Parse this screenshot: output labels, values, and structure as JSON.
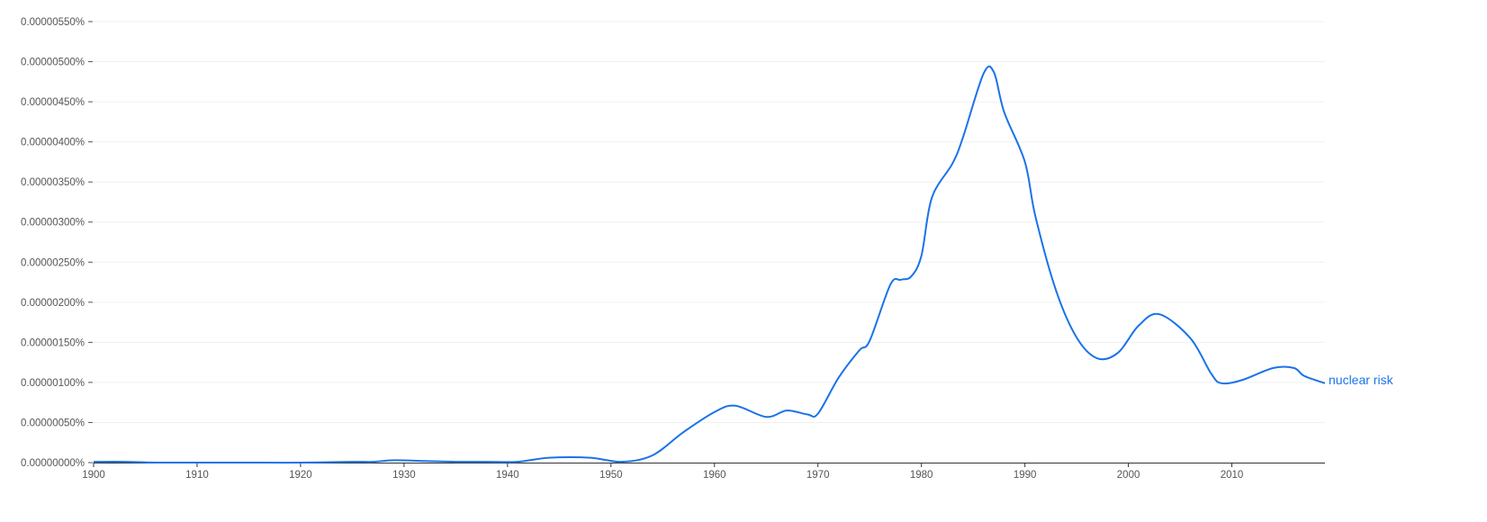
{
  "chart_data": {
    "type": "line",
    "xlim": [
      1900,
      2019
    ],
    "ylim": [
      0,
      5.5e-06
    ],
    "grid": true,
    "x_ticks": [
      1900,
      1910,
      1920,
      1930,
      1940,
      1950,
      1960,
      1970,
      1980,
      1990,
      2000,
      2010
    ],
    "x_tick_labels": [
      "1900",
      "1910",
      "1920",
      "1930",
      "1940",
      "1950",
      "1960",
      "1970",
      "1980",
      "1990",
      "2000",
      "2010"
    ],
    "y_ticks": [
      0,
      5e-07,
      1e-06,
      1.5e-06,
      2e-06,
      2.5e-06,
      3e-06,
      3.5e-06,
      4e-06,
      4.5e-06,
      5e-06,
      5.5e-06
    ],
    "y_tick_labels": [
      "0.00000000%",
      "0.00000050%",
      "0.00000100%",
      "0.00000150%",
      "0.00000200%",
      "0.00000250%",
      "0.00000300%",
      "0.00000350%",
      "0.00000400%",
      "0.00000450%",
      "0.00000500%",
      "0.00000550%"
    ],
    "series": [
      {
        "name": "nuclear risk",
        "color": "#1a73e8",
        "x": [
          1900,
          1903,
          1906,
          1910,
          1915,
          1920,
          1925,
          1927,
          1929,
          1932,
          1935,
          1938,
          1941,
          1944,
          1948,
          1951,
          1954,
          1957,
          1960,
          1962,
          1965,
          1967,
          1969,
          1970,
          1972,
          1974,
          1975,
          1977,
          1978,
          1979,
          1980,
          1981,
          1983,
          1984,
          1986,
          1987,
          1988,
          1990,
          1991,
          1993,
          1995,
          1997,
          1999,
          2001,
          2003,
          2006,
          2008,
          2009,
          2011,
          2014,
          2016,
          2017,
          2019
        ],
        "values": [
          1e-08,
          1e-08,
          0,
          0,
          0,
          0,
          1e-08,
          1e-08,
          3e-08,
          2e-08,
          1e-08,
          1e-08,
          1e-08,
          6e-08,
          6e-08,
          1e-08,
          9e-08,
          3.8e-07,
          6.3e-07,
          7.1e-07,
          5.7e-07,
          6.5e-07,
          6e-07,
          6.1e-07,
          1.06e-06,
          1.4e-06,
          1.52e-06,
          2.22e-06,
          2.28e-06,
          2.32e-06,
          2.58e-06,
          3.3e-06,
          3.73e-06,
          4.05e-06,
          4.85e-06,
          4.87e-06,
          4.37e-06,
          3.75e-06,
          3.08e-06,
          2.15e-06,
          1.56e-06,
          1.3e-06,
          1.37e-06,
          1.71e-06,
          1.85e-06,
          1.55e-06,
          1.11e-06,
          9.9e-07,
          1.03e-06,
          1.18e-06,
          1.18e-06,
          1.08e-06,
          9.9e-07
        ]
      }
    ]
  }
}
